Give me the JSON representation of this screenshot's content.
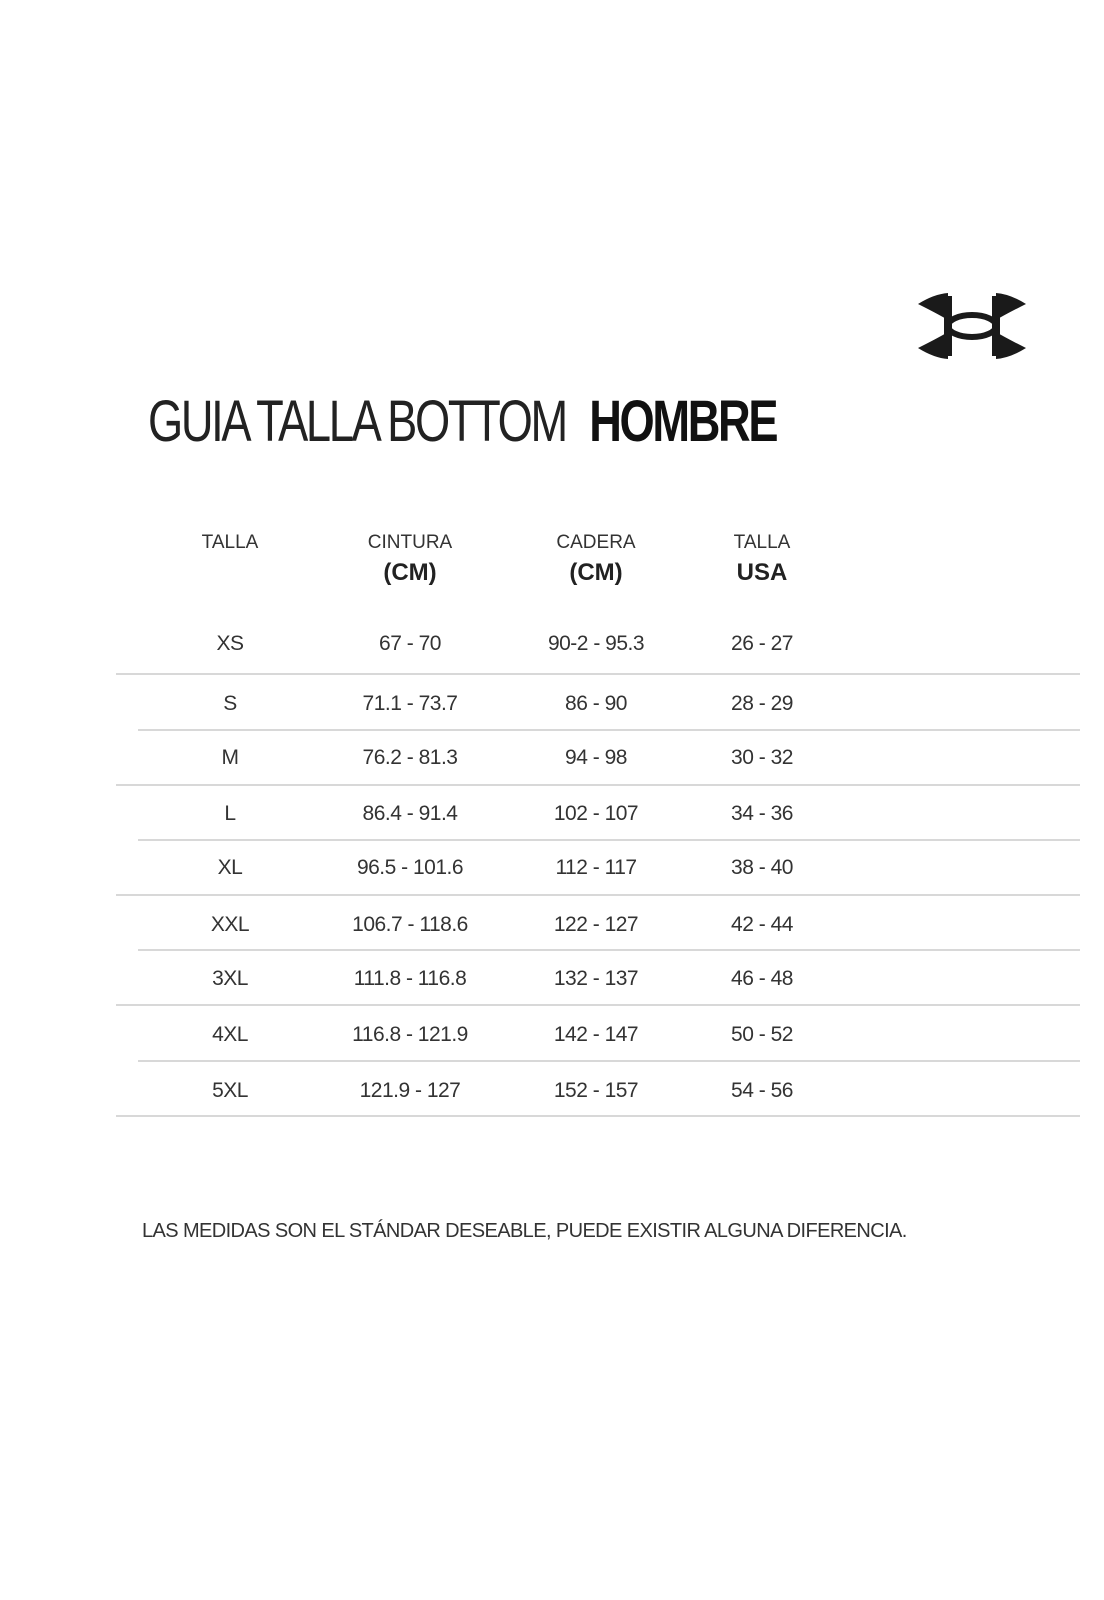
{
  "logo": {
    "brand": "Under Armour",
    "icon": "under-armour-logo"
  },
  "title": {
    "light": "GUIA TALLA BOTTOM",
    "bold": "HOMBRE"
  },
  "table": {
    "headers": [
      {
        "line1": "TALLA",
        "line2": ""
      },
      {
        "line1": "CINTURA",
        "line2": "(CM)"
      },
      {
        "line1": "CADERA",
        "line2": "(CM)"
      },
      {
        "line1": "TALLA",
        "line2": "USA"
      }
    ],
    "rows": [
      [
        "XS",
        "67 - 70",
        "90-2 - 95.3",
        "26 - 27"
      ],
      [
        "S",
        "71.1 - 73.7",
        "86 - 90",
        "28 - 29"
      ],
      [
        "M",
        "76.2 - 81.3",
        "94 - 98",
        "30 - 32"
      ],
      [
        "L",
        "86.4 - 91.4",
        "102 - 107",
        "34 - 36"
      ],
      [
        "XL",
        "96.5 - 101.6",
        "112 - 117",
        "38 - 40"
      ],
      [
        "XXL",
        "106.7 - 118.6",
        "122 - 127",
        "42 - 44"
      ],
      [
        "3XL",
        "111.8 - 116.8",
        "132 - 137",
        "46 - 48"
      ],
      [
        "4XL",
        "116.8 - 121.9",
        "142 - 147",
        "50 - 52"
      ],
      [
        "5XL",
        "121.9 - 127",
        "152 - 157",
        "54 - 56"
      ]
    ]
  },
  "note": "LAS MEDIDAS SON EL STÁNDAR DESEABLE, PUEDE EXISTIR ALGUNA DIFERENCIA."
}
